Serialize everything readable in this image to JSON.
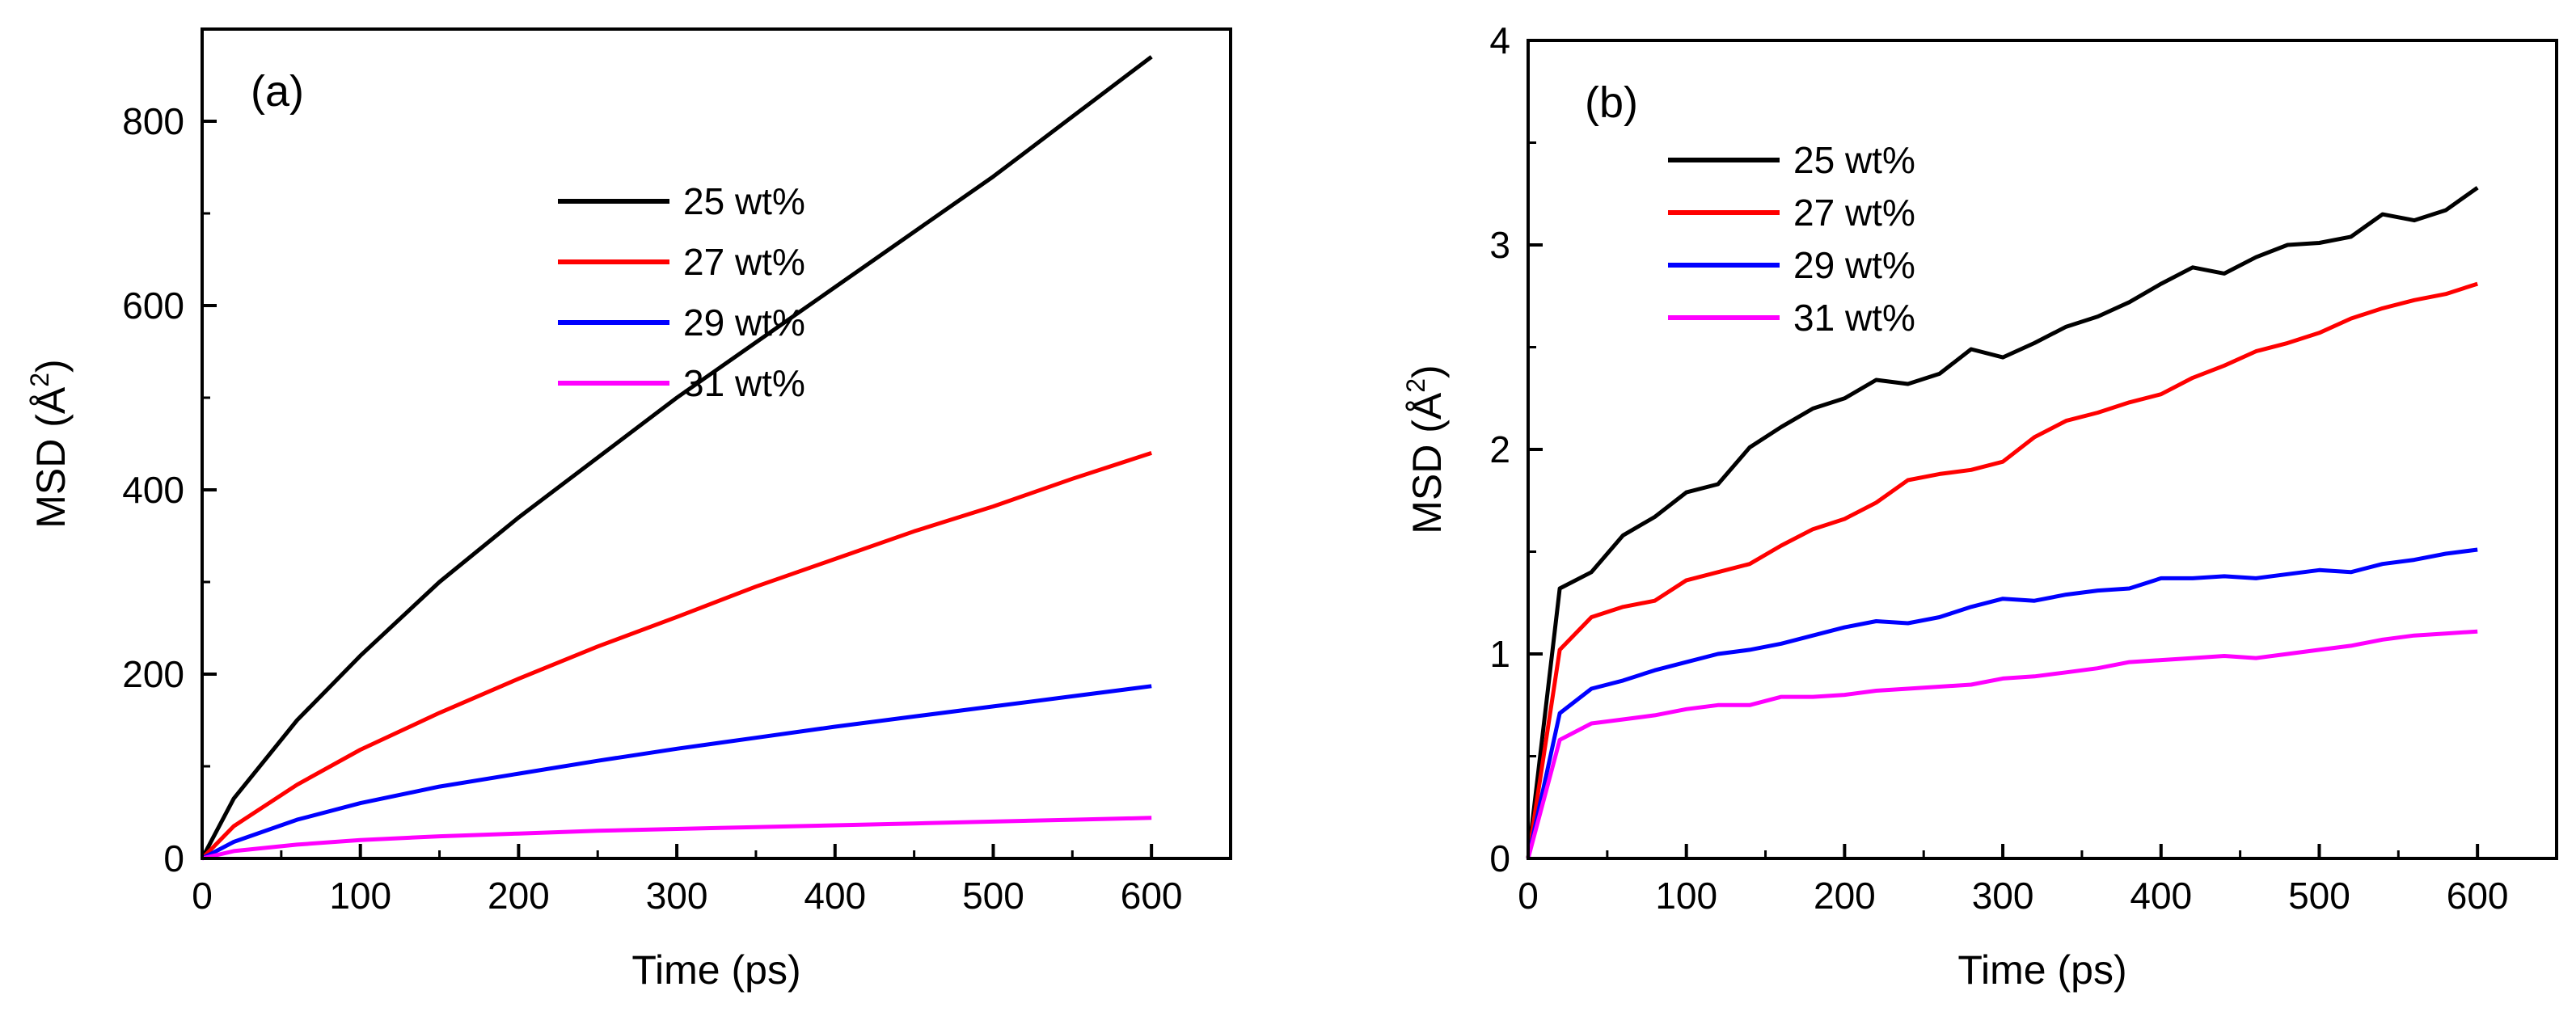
{
  "chart_data": [
    {
      "type": "line",
      "panel_label": "(a)",
      "xlabel": "Time (ps)",
      "ylabel": "MSD (Å²)",
      "ylabel_main": "MSD (Å",
      "ylabel_sup": "2",
      "ylabel_close": ")",
      "xlim": [
        0,
        650
      ],
      "ylim": [
        0,
        900
      ],
      "xticks": [
        0,
        100,
        200,
        300,
        400,
        500,
        600
      ],
      "yticks": [
        0,
        200,
        400,
        600,
        800
      ],
      "x": [
        0,
        20,
        60,
        100,
        150,
        200,
        250,
        300,
        350,
        400,
        450,
        500,
        550,
        600
      ],
      "series": [
        {
          "name": "25 wt%",
          "color": "#000000",
          "values": [
            0,
            65,
            150,
            220,
            300,
            370,
            435,
            500,
            560,
            620,
            680,
            740,
            805,
            870
          ]
        },
        {
          "name": "27 wt%",
          "color": "#ff0000",
          "values": [
            0,
            35,
            80,
            118,
            158,
            195,
            230,
            262,
            295,
            325,
            355,
            382,
            412,
            440
          ]
        },
        {
          "name": "29 wt%",
          "color": "#0000ff",
          "values": [
            0,
            18,
            42,
            60,
            78,
            92,
            106,
            119,
            131,
            143,
            154,
            165,
            176,
            187
          ]
        },
        {
          "name": "31 wt%",
          "color": "#ff00ff",
          "values": [
            0,
            8,
            15,
            20,
            24,
            27,
            30,
            32,
            34,
            36,
            38,
            40,
            42,
            44
          ]
        }
      ]
    },
    {
      "type": "line",
      "panel_label": "(b)",
      "xlabel": "Time (ps)",
      "ylabel": "MSD (Å²)",
      "ylabel_main": "MSD (Å",
      "ylabel_sup": "2",
      "ylabel_close": ")",
      "xlim": [
        0,
        650
      ],
      "ylim": [
        0,
        4
      ],
      "xticks": [
        0,
        100,
        200,
        300,
        400,
        500,
        600
      ],
      "yticks": [
        0,
        1,
        2,
        3,
        4
      ],
      "x": [
        0,
        20,
        40,
        60,
        80,
        100,
        120,
        140,
        160,
        180,
        200,
        220,
        240,
        260,
        280,
        300,
        320,
        340,
        360,
        380,
        400,
        420,
        440,
        460,
        480,
        500,
        520,
        540,
        560,
        580,
        600
      ],
      "series": [
        {
          "name": "25 wt%",
          "color": "#000000",
          "values": [
            0,
            1.32,
            1.4,
            1.58,
            1.67,
            1.79,
            1.83,
            2.01,
            2.11,
            2.2,
            2.25,
            2.34,
            2.32,
            2.37,
            2.49,
            2.45,
            2.52,
            2.6,
            2.65,
            2.72,
            2.81,
            2.89,
            2.86,
            2.94,
            3.0,
            3.01,
            3.04,
            3.15,
            3.12,
            3.17,
            3.28
          ]
        },
        {
          "name": "27 wt%",
          "color": "#ff0000",
          "values": [
            0,
            1.02,
            1.18,
            1.23,
            1.26,
            1.36,
            1.4,
            1.44,
            1.53,
            1.61,
            1.66,
            1.74,
            1.85,
            1.88,
            1.9,
            1.94,
            2.06,
            2.14,
            2.18,
            2.23,
            2.27,
            2.35,
            2.41,
            2.48,
            2.52,
            2.57,
            2.64,
            2.69,
            2.73,
            2.76,
            2.81
          ]
        },
        {
          "name": "29 wt%",
          "color": "#0000ff",
          "values": [
            0,
            0.71,
            0.83,
            0.87,
            0.92,
            0.96,
            1.0,
            1.02,
            1.05,
            1.09,
            1.13,
            1.16,
            1.15,
            1.18,
            1.23,
            1.27,
            1.26,
            1.29,
            1.31,
            1.32,
            1.37,
            1.37,
            1.38,
            1.37,
            1.39,
            1.41,
            1.4,
            1.44,
            1.46,
            1.49,
            1.51
          ]
        },
        {
          "name": "31 wt%",
          "color": "#ff00ff",
          "values": [
            0,
            0.58,
            0.66,
            0.68,
            0.7,
            0.73,
            0.75,
            0.75,
            0.79,
            0.79,
            0.8,
            0.82,
            0.83,
            0.84,
            0.85,
            0.88,
            0.89,
            0.91,
            0.93,
            0.96,
            0.97,
            0.98,
            0.99,
            0.98,
            1.0,
            1.02,
            1.04,
            1.07,
            1.09,
            1.1,
            1.11
          ]
        }
      ]
    }
  ]
}
